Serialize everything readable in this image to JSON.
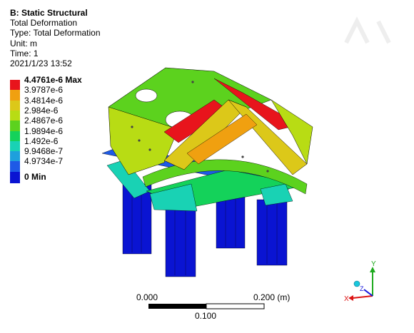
{
  "header": {
    "analysis_title": "B: Static Structural",
    "result_type": "Total Deformation",
    "type_line": "Type: Total Deformation",
    "unit_line": "Unit: m",
    "time_line": "Time: 1",
    "timestamp": "2021/1/23 13:52"
  },
  "legend": {
    "levels": [
      {
        "label": "4.4761e-6 Max",
        "color": "#e8141c"
      },
      {
        "label": "3.9787e-6",
        "color": "#f0a010"
      },
      {
        "label": "3.4814e-6",
        "color": "#dcc819"
      },
      {
        "label": "2.984e-6",
        "color": "#b8dc14"
      },
      {
        "label": "2.4867e-6",
        "color": "#5cd21e"
      },
      {
        "label": "1.9894e-6",
        "color": "#14d25a"
      },
      {
        "label": "1.492e-6",
        "color": "#19d2b4"
      },
      {
        "label": "9.9468e-7",
        "color": "#1ea0dc"
      },
      {
        "label": "4.9734e-7",
        "color": "#1e5ae6"
      },
      {
        "label": "0 Min",
        "color": "#0a14d2"
      }
    ]
  },
  "scale_bar": {
    "left_label": "0.000",
    "right_label": "0.200 (m)",
    "mid_label": "0.100"
  },
  "triad": {
    "y_axis": "Y",
    "x_axis": "X",
    "z_axis": "Z",
    "y_color": "#1eaa1e",
    "x_color": "#dc1414",
    "z_color": "#1414dc"
  }
}
